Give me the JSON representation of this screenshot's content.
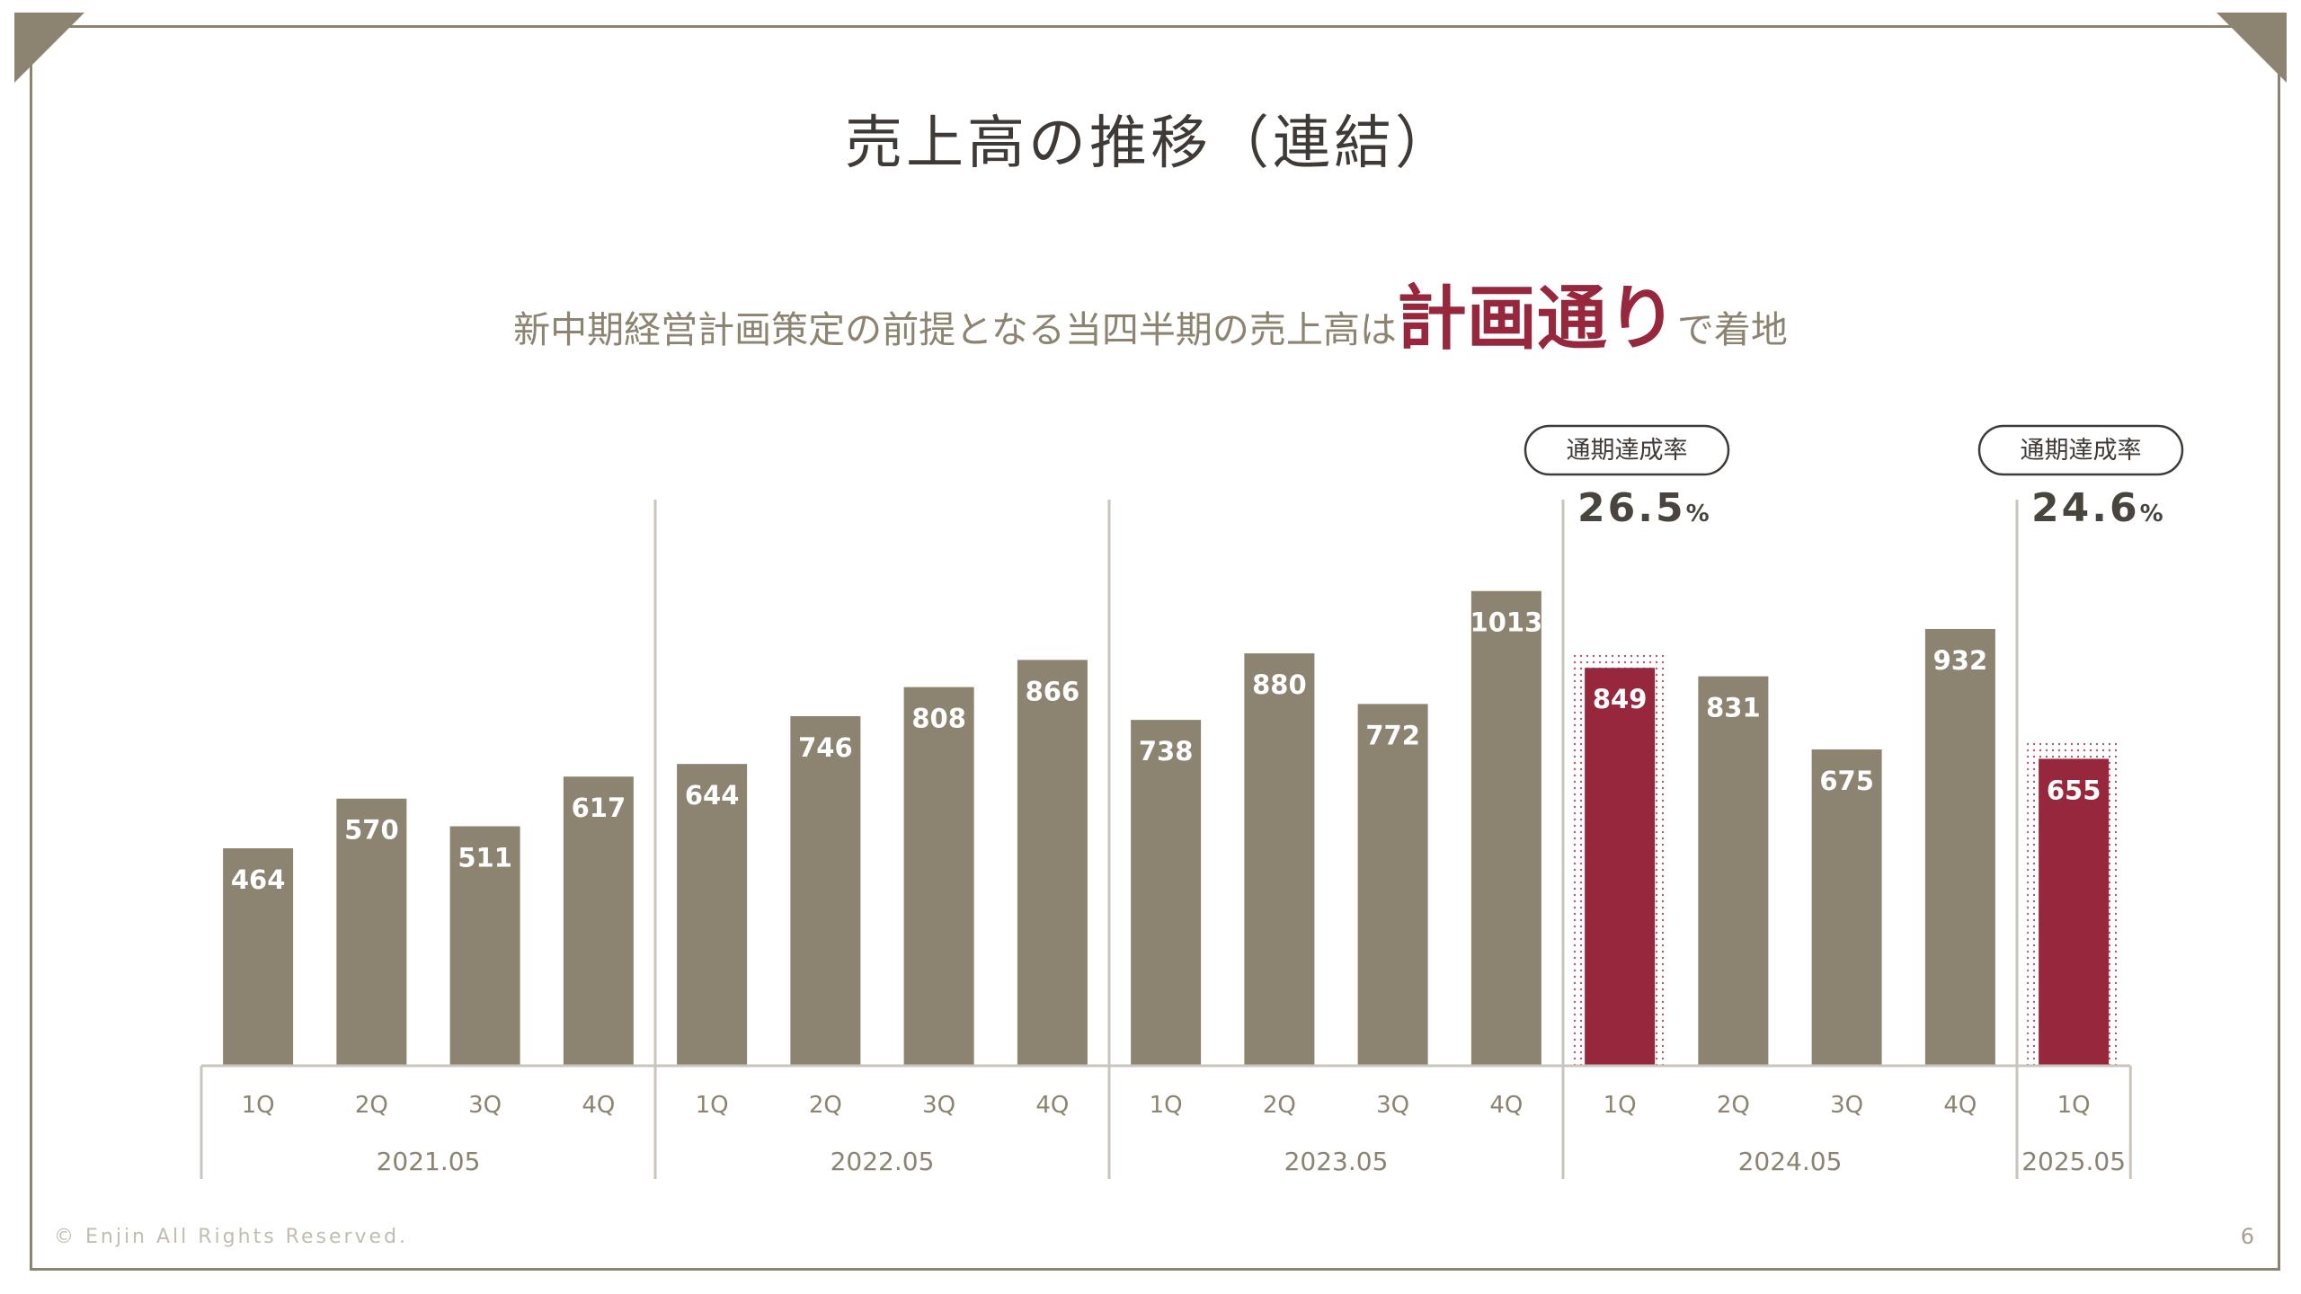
{
  "slide": {
    "title": "売上高の推移（連結）",
    "subtitle_lead": "新中期経営計画策定の前提となる当四半期の売上高は",
    "subtitle_emphasis": "計画通り",
    "subtitle_tail": "で着地",
    "footer": "© Enjin All Rights Reserved.",
    "page_number": "6"
  },
  "colors": {
    "bar": "#8c8370",
    "highlight": "#97273d",
    "frame": "#8c8370",
    "axis": "#c9c5bd",
    "label_text": "#ffffff",
    "tick_text": "#8c8370"
  },
  "chart_data": {
    "type": "bar",
    "title": "売上高の推移（連結）",
    "xlabel": "",
    "ylabel": "",
    "grid": false,
    "legend": "none",
    "ylim": [
      0,
      1100
    ],
    "groups": [
      {
        "label": "2021.05",
        "categories": [
          "1Q",
          "2Q",
          "3Q",
          "4Q"
        ],
        "values": [
          464,
          570,
          511,
          617
        ],
        "highlight": [
          false,
          false,
          false,
          false
        ]
      },
      {
        "label": "2022.05",
        "categories": [
          "1Q",
          "2Q",
          "3Q",
          "4Q"
        ],
        "values": [
          644,
          746,
          808,
          866
        ],
        "highlight": [
          false,
          false,
          false,
          false
        ]
      },
      {
        "label": "2023.05",
        "categories": [
          "1Q",
          "2Q",
          "3Q",
          "4Q"
        ],
        "values": [
          738,
          880,
          772,
          1013
        ],
        "highlight": [
          false,
          false,
          false,
          false
        ]
      },
      {
        "label": "2024.05",
        "categories": [
          "1Q",
          "2Q",
          "3Q",
          "4Q"
        ],
        "values": [
          849,
          831,
          675,
          932
        ],
        "highlight": [
          true,
          false,
          false,
          false
        ]
      },
      {
        "label": "2025.05",
        "categories": [
          "1Q"
        ],
        "values": [
          655
        ],
        "highlight": [
          true
        ]
      }
    ],
    "annotations": [
      {
        "group": 3,
        "badge": "通期達成率",
        "value": "26.5",
        "unit": "%"
      },
      {
        "group": 4,
        "badge": "通期達成率",
        "value": "24.6",
        "unit": "%"
      }
    ]
  }
}
